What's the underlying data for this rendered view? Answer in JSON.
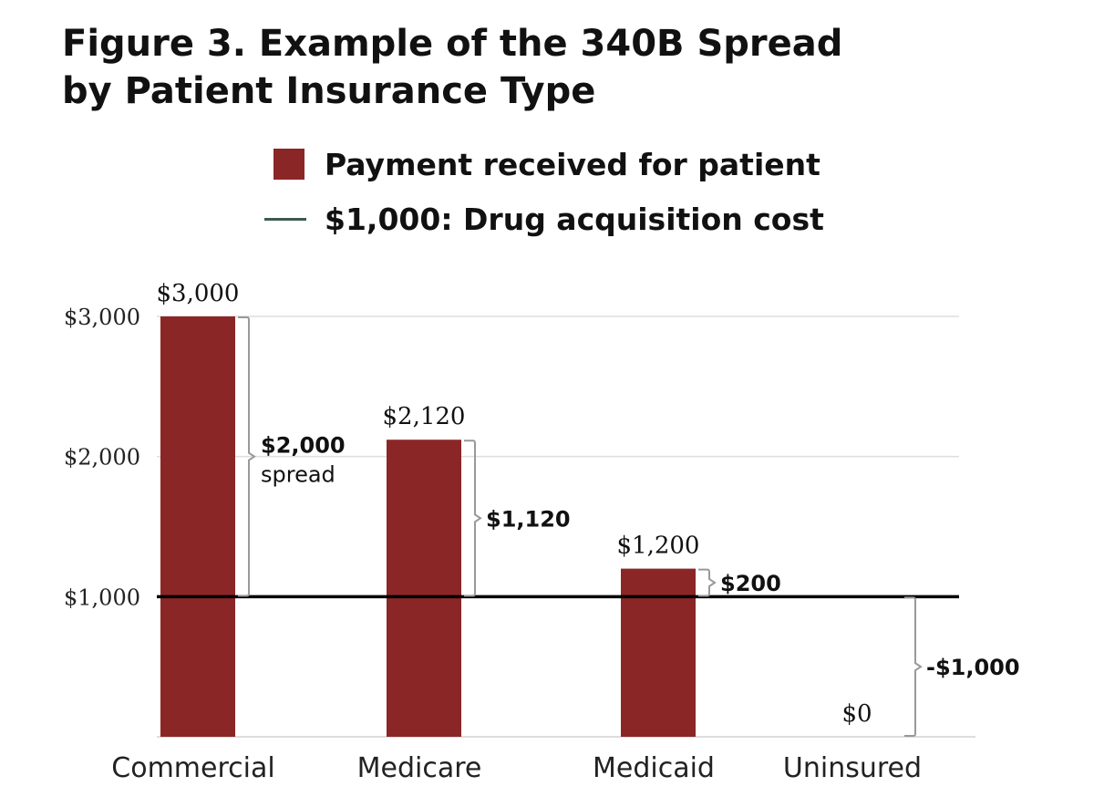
{
  "title_line1": "Figure 3. Example of the 340B Spread",
  "title_line2": "by Patient Insurance Type",
  "legend": {
    "bar_label": "Payment received for patient",
    "line_label": "$1,000: Drug acquisition cost"
  },
  "colors": {
    "bar": "#8b2626",
    "reference_line": "#000000",
    "legend_line": "#3c5a4e",
    "grid": "#dddddd",
    "bracket": "#999999"
  },
  "chart_data": {
    "type": "bar",
    "categories": [
      "Commercial",
      "Medicare",
      "Medicaid",
      "Uninsured"
    ],
    "values": [
      3000,
      2120,
      1200,
      0
    ],
    "value_labels": [
      "$3,000",
      "$2,120",
      "$1,200",
      "$0"
    ],
    "reference_line": {
      "value": 1000
    },
    "spreads": [
      {
        "category": "Commercial",
        "from": 1000,
        "to": 3000,
        "label": "$2,000",
        "sublabel": "spread"
      },
      {
        "category": "Medicare",
        "from": 1000,
        "to": 2120,
        "label": "$1,120",
        "sublabel": ""
      },
      {
        "category": "Medicaid",
        "from": 1000,
        "to": 1200,
        "label": "$200",
        "sublabel": ""
      },
      {
        "category": "Uninsured",
        "from": 0,
        "to": 1000,
        "label": "-$1,000",
        "sublabel": ""
      }
    ],
    "ylim": [
      0,
      3000
    ],
    "yticks": [
      1000,
      2000,
      3000
    ],
    "ytick_labels": [
      "$1,000",
      "$2,000",
      "$3,000"
    ],
    "xlabel": "",
    "ylabel": "",
    "grid": true,
    "legend_position": "top"
  }
}
